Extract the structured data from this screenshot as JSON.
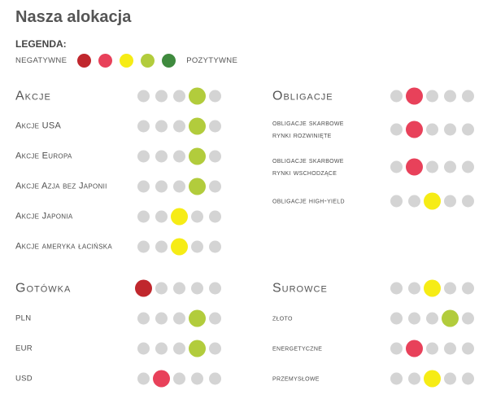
{
  "title": "Nasza alokacja",
  "legend": {
    "title": "LEGENDA:",
    "negative_label": "NEGATYWNE",
    "positive_label": "POZYTYWNE",
    "colors": [
      "#c0272d",
      "#e8415a",
      "#f6ec15",
      "#b2cc3c",
      "#3f8a3e"
    ]
  },
  "colors": {
    "empty": "#d4d4d4",
    "1": "#c0272d",
    "2": "#e8415a",
    "3": "#f6ec15",
    "4": "#b2cc3c",
    "5": "#3f8a3e"
  },
  "sections": {
    "akcje": {
      "heading": "Akcje",
      "rating": 4,
      "items": [
        {
          "label": "Akcje USA",
          "rating": 4
        },
        {
          "label": "Akcje Europa",
          "rating": 4
        },
        {
          "label": "Akcje Azja bez Japonii",
          "rating": 4
        },
        {
          "label": "Akcje Japonia",
          "rating": 3
        },
        {
          "label": "Akcje ameryka łacińska",
          "rating": 3
        }
      ]
    },
    "obligacje": {
      "heading": "Obligacje",
      "rating": 2,
      "items": [
        {
          "label": "obligacje skarbowe",
          "label2": "rynki rozwinięte",
          "rating": 2
        },
        {
          "label": "obligacje skarbowe",
          "label2": "rynki wschodzące",
          "rating": 2
        },
        {
          "label": "obligacje high-yield",
          "rating": 3
        }
      ]
    },
    "gotowka": {
      "heading": "Gotówka",
      "rating": 1,
      "items": [
        {
          "label": "PLN",
          "rating": 4
        },
        {
          "label": "EUR",
          "rating": 4
        },
        {
          "label": "USD",
          "rating": 2
        }
      ]
    },
    "surowce": {
      "heading": "Surowce",
      "rating": 3,
      "items": [
        {
          "label": "złoto",
          "rating": 4
        },
        {
          "label": "energetyczne",
          "rating": 2
        },
        {
          "label": "przemysłowe",
          "rating": 3
        }
      ]
    }
  }
}
